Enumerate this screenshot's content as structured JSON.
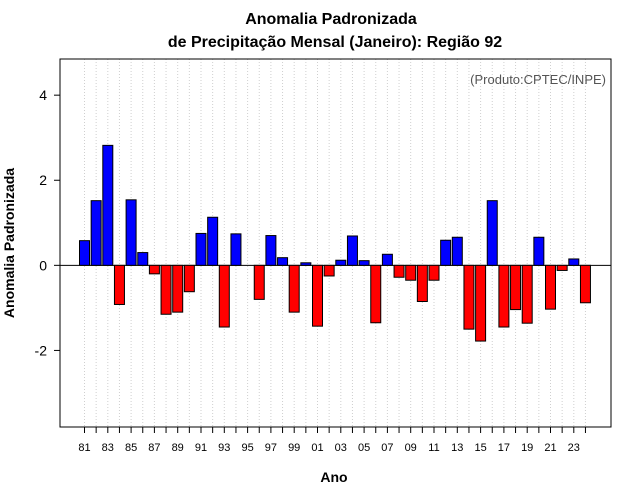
{
  "chart_data": {
    "type": "bar",
    "title": "Anomalia Padronizada",
    "subtitle": "de Precipitação Mensal (Janeiro): Região 92",
    "xlabel": "Ano",
    "ylabel": "Anomalia Padronizada",
    "credit": "(Produto:CPTEC/INPE)",
    "ylim": [
      -3.8,
      4.85
    ],
    "yticks": [
      -2,
      0,
      2,
      4
    ],
    "ytick_labels": [
      "-2",
      "0",
      "2",
      "4"
    ],
    "grid": "vertical dotted",
    "positive_color": "#0000ff",
    "negative_color": "#ff0000",
    "categories": [
      "81",
      "82",
      "83",
      "84",
      "85",
      "86",
      "87",
      "88",
      "89",
      "90",
      "91",
      "92",
      "93",
      "94",
      "95",
      "96",
      "97",
      "98",
      "99",
      "00",
      "01",
      "02",
      "03",
      "04",
      "05",
      "06",
      "07",
      "08",
      "09",
      "10",
      "11",
      "12",
      "13",
      "14",
      "15",
      "16",
      "17",
      "18",
      "19",
      "20",
      "21",
      "22",
      "23",
      "24"
    ],
    "xtick_labels": [
      "81",
      "83",
      "85",
      "87",
      "89",
      "91",
      "93",
      "95",
      "97",
      "99",
      "01",
      "03",
      "05",
      "07",
      "09",
      "11",
      "13",
      "15",
      "17",
      "19",
      "21",
      "23"
    ],
    "values": [
      0.58,
      1.52,
      2.82,
      -0.92,
      1.54,
      0.3,
      -0.2,
      -1.15,
      -1.1,
      -0.62,
      0.75,
      1.13,
      -1.45,
      0.74,
      0.0,
      -0.8,
      0.7,
      0.18,
      -1.1,
      0.06,
      -1.43,
      -0.25,
      0.12,
      0.69,
      0.11,
      -1.35,
      0.26,
      -0.28,
      -0.35,
      -0.85,
      -0.35,
      0.59,
      0.66,
      -1.5,
      -1.78,
      1.52,
      -1.45,
      -1.04,
      -1.36,
      0.66,
      -1.03,
      -0.12,
      0.15,
      -0.88
    ]
  }
}
